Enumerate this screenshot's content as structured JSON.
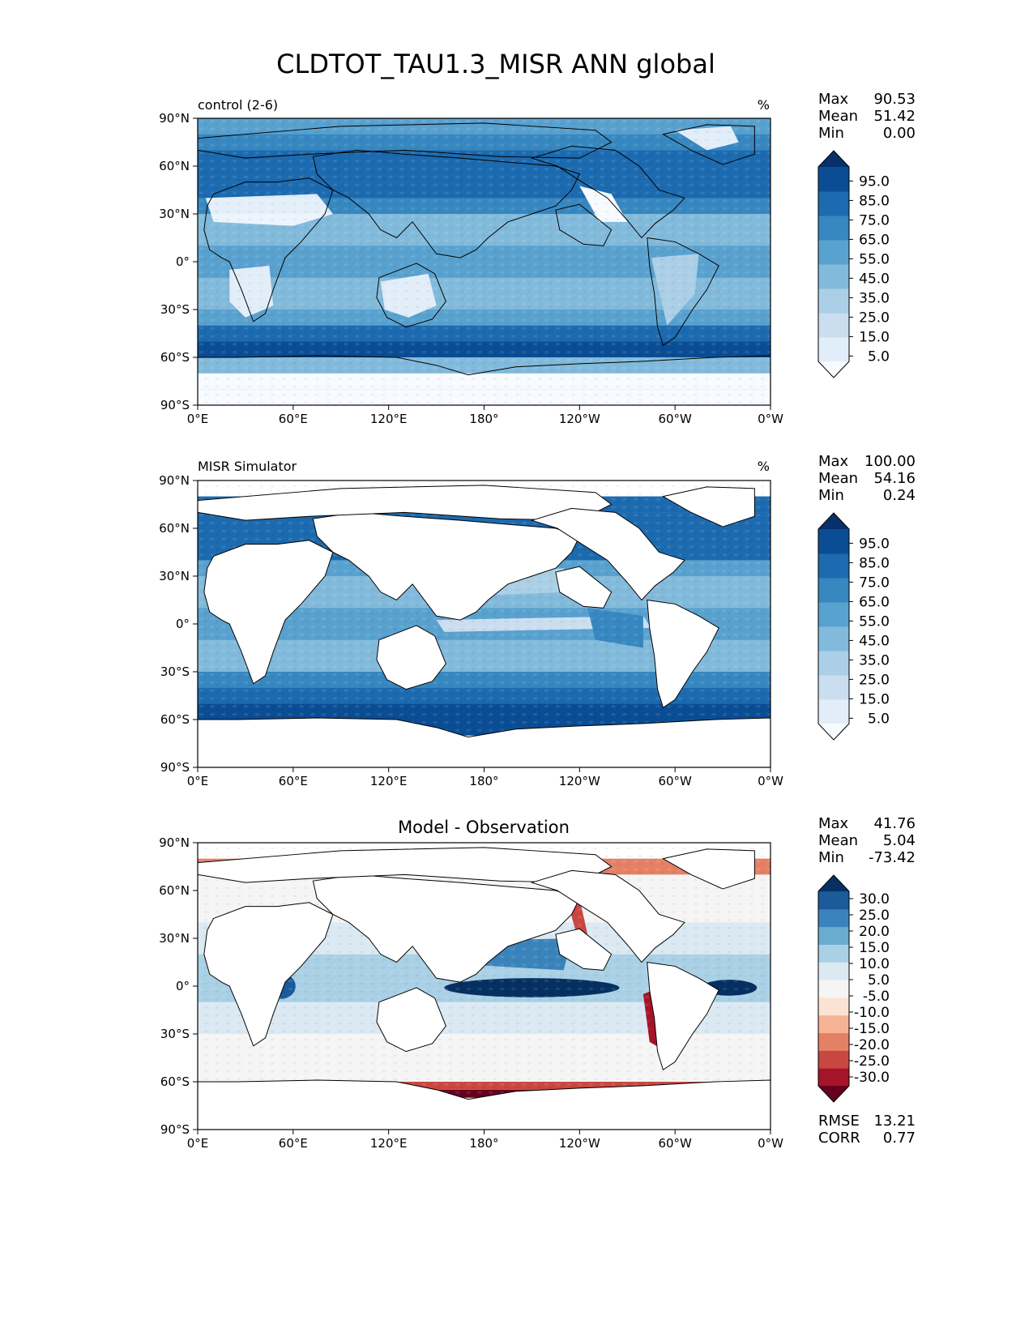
{
  "figure_title": "CLDTOT_TAU1.3_MISR ANN global",
  "x_tick_labels": [
    "0°E",
    "60°E",
    "120°E",
    "180°",
    "120°W",
    "60°W",
    "0°W"
  ],
  "y_tick_labels": [
    "90°N",
    "60°N",
    "30°N",
    "0°",
    "30°S",
    "60°S",
    "90°S"
  ],
  "colors": {
    "blues": [
      "#f7fbff",
      "#e1edf8",
      "#cadef0",
      "#abcfe6",
      "#82badb",
      "#59a1cf",
      "#3787c0",
      "#1c6aaf",
      "#0b4d94",
      "#08306b"
    ],
    "diverging": [
      "#67001f",
      "#a51429",
      "#c94741",
      "#e48066",
      "#f6b394",
      "#fbe3d4",
      "#f5f5f5",
      "#dbe9f2",
      "#a9d0e5",
      "#6aacd0",
      "#3a84bb",
      "#1b5a9b",
      "#053061"
    ],
    "land_diff": "#ffffff",
    "coastline": "#000000"
  },
  "chart_data": [
    {
      "type": "heatmap",
      "name": "control (2-6)",
      "units": "%",
      "stats": {
        "Max": "90.53",
        "Mean": "51.42",
        "Min": "0.00"
      },
      "colorbar_labels": [
        "95.0",
        "85.0",
        "75.0",
        "65.0",
        "55.0",
        "45.0",
        "35.0",
        "25.0",
        "15.0",
        "5.0"
      ],
      "xlim": [
        0,
        360
      ],
      "ylim": [
        -90,
        90
      ],
      "zonal_mean_lat": [
        -90,
        -80,
        -70,
        -60,
        -50,
        -40,
        -30,
        -20,
        -10,
        0,
        10,
        20,
        30,
        40,
        50,
        60,
        70,
        80,
        90
      ],
      "zonal_mean_value": [
        5,
        5,
        8,
        85,
        80,
        65,
        50,
        40,
        55,
        60,
        55,
        40,
        50,
        70,
        75,
        70,
        70,
        60,
        50
      ]
    },
    {
      "type": "heatmap",
      "name": "MISR Simulator",
      "units": "%",
      "stats": {
        "Max": "100.00",
        "Mean": "54.16",
        "Min": "0.24"
      },
      "colorbar_labels": [
        "95.0",
        "85.0",
        "75.0",
        "65.0",
        "55.0",
        "45.0",
        "35.0",
        "25.0",
        "15.0",
        "5.0"
      ],
      "xlim": [
        0,
        360
      ],
      "ylim": [
        -90,
        90
      ],
      "zonal_mean_lat": [
        -70,
        -60,
        -50,
        -40,
        -30,
        -20,
        -10,
        0,
        10,
        20,
        30,
        40,
        50,
        60,
        70,
        80
      ],
      "zonal_mean_value": [
        75,
        85,
        80,
        70,
        55,
        40,
        50,
        55,
        50,
        38,
        45,
        65,
        75,
        70,
        70,
        75
      ]
    },
    {
      "type": "heatmap",
      "title": "Model - Observation",
      "stats": {
        "Max": "41.76",
        "Mean": "5.04",
        "Min": "-73.42"
      },
      "metrics": {
        "RMSE": "13.21",
        "CORR": "0.77"
      },
      "colorbar_labels": [
        "30.0",
        "25.0",
        "20.0",
        "15.0",
        "10.0",
        "5.0",
        "-5.0",
        "-10.0",
        "-15.0",
        "-20.0",
        "-25.0",
        "-30.0"
      ],
      "xlim": [
        0,
        360
      ],
      "ylim": [
        -90,
        90
      ],
      "zonal_mean_lat": [
        -70,
        -65,
        -60,
        -50,
        -40,
        -30,
        -20,
        -10,
        0,
        10,
        20,
        30,
        40,
        50,
        60,
        70,
        80
      ],
      "zonal_mean_value": [
        -35,
        -30,
        -12,
        3,
        5,
        4,
        6,
        12,
        15,
        12,
        10,
        8,
        4,
        2,
        0,
        -5,
        -30
      ]
    }
  ]
}
